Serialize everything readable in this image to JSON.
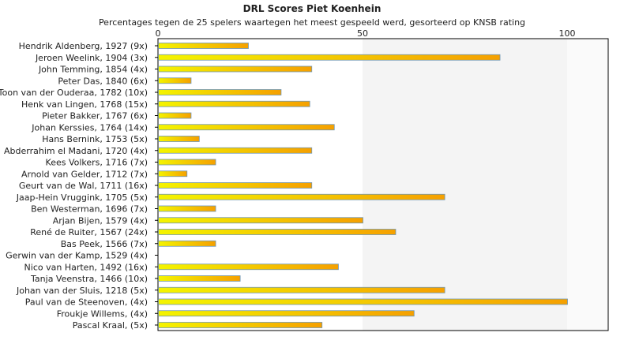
{
  "chart_data": {
    "type": "bar",
    "orientation": "horizontal",
    "title": "DRL Scores Piet Koenhein",
    "subtitle": "Percentages tegen de 25 spelers waartegen het meest gespeeld werd, gesorteerd op KNSB rating",
    "xlim": [
      0,
      110
    ],
    "xticks": [
      "0",
      "50",
      "100"
    ],
    "grid": false,
    "categories": [
      "Hendrik Aldenberg, 1927 (9x)",
      "Jeroen Weelink, 1904 (3x)",
      "John Temming, 1854 (4x)",
      "Peter Das, 1840 (6x)",
      "Toon van der Ouderaa, 1782 (10x)",
      "Henk van Lingen, 1768 (15x)",
      "Pieter Bakker, 1767 (6x)",
      "Johan Kerssies, 1764 (14x)",
      "Hans Bernink, 1753 (5x)",
      "Abderrahim el Madani, 1720 (4x)",
      "Kees Volkers, 1716 (7x)",
      "Arnold van Gelder, 1712 (7x)",
      "Geurt van de Wal, 1711 (16x)",
      "Jaap-Hein Vruggink, 1705 (5x)",
      "Ben Westerman, 1696 (7x)",
      "Arjan Bijen, 1579 (4x)",
      "René de Ruiter, 1567 (24x)",
      "Bas Peek, 1566 (7x)",
      "Gerwin van der Kamp, 1529 (4x)",
      "Nico van Harten, 1492 (16x)",
      "Tanja Veenstra, 1466 (10x)",
      "Johan van der Sluis, 1218 (5x)",
      "Paul van de Steenoven,  (4x)",
      "Froukje Willems,  (4x)",
      "Pascal Kraal,  (5x)"
    ],
    "values": [
      22,
      83.5,
      37.5,
      8,
      30,
      37,
      8,
      43,
      10,
      37.5,
      14,
      7,
      37.5,
      70,
      14,
      50,
      58,
      14,
      0,
      44,
      20,
      70,
      100,
      62.5,
      40
    ],
    "bar_gradient": [
      "#f4f400",
      "#f5a000"
    ],
    "bar_stroke": "#6e96b4",
    "band_colors": [
      "#ffffff",
      "#f4f4f4",
      "#fafafa"
    ]
  }
}
